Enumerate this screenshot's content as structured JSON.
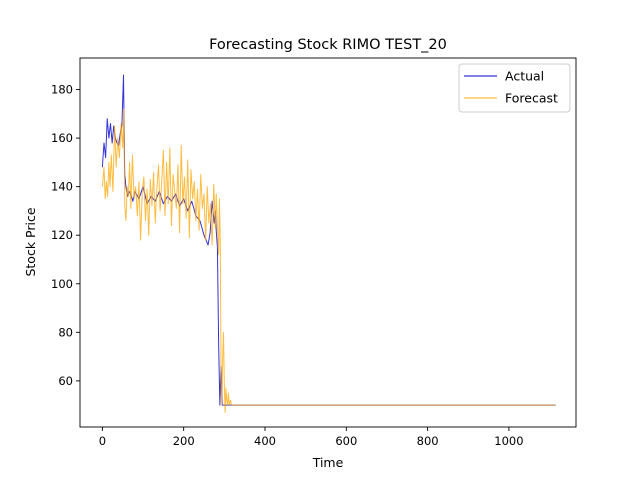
{
  "chart_data": {
    "type": "line",
    "title": "Forecasting Stock RIMO TEST_20",
    "xlabel": "Time",
    "ylabel": "Stock Price",
    "xlim": [
      -55,
      1165
    ],
    "ylim": [
      41,
      193
    ],
    "xticks": [
      0,
      200,
      400,
      600,
      800,
      1000
    ],
    "yticks": [
      60,
      80,
      100,
      120,
      140,
      160,
      180
    ],
    "grid": false,
    "legend_position": "top-right",
    "series": [
      {
        "name": "Actual",
        "color": "#0000cc",
        "x": [
          0,
          4,
          8,
          12,
          16,
          20,
          24,
          28,
          32,
          36,
          40,
          44,
          48,
          52,
          53,
          55,
          58,
          62,
          66,
          70,
          75,
          80,
          90,
          100,
          110,
          120,
          130,
          140,
          150,
          160,
          170,
          180,
          190,
          200,
          210,
          220,
          230,
          240,
          250,
          255,
          260,
          265,
          270,
          275,
          278,
          280,
          283,
          286,
          289,
          292,
          295,
          300,
          310,
          1115
        ],
        "y": [
          148,
          158,
          152,
          168,
          160,
          166,
          158,
          165,
          160,
          158,
          157,
          162,
          165,
          186,
          172,
          145,
          140,
          136,
          138,
          137,
          134,
          138,
          135,
          140,
          133,
          136,
          134,
          138,
          133,
          136,
          134,
          137,
          132,
          135,
          130,
          134,
          128,
          126,
          120,
          118,
          116,
          121,
          134,
          125,
          130,
          122,
          115,
          75,
          50,
          66,
          50,
          50,
          50,
          50
        ]
      },
      {
        "name": "Forecast",
        "color": "#ffa500",
        "x": [
          0,
          4,
          7,
          10,
          13,
          16,
          19,
          22,
          26,
          30,
          34,
          38,
          42,
          46,
          50,
          53,
          55,
          58,
          61,
          64,
          67,
          70,
          74,
          78,
          82,
          86,
          90,
          94,
          98,
          102,
          106,
          110,
          114,
          118,
          122,
          126,
          130,
          134,
          138,
          142,
          146,
          150,
          154,
          158,
          162,
          166,
          170,
          174,
          178,
          182,
          186,
          190,
          194,
          198,
          202,
          206,
          210,
          214,
          218,
          222,
          226,
          230,
          234,
          238,
          242,
          246,
          250,
          254,
          258,
          262,
          266,
          270,
          274,
          278,
          280,
          282,
          284,
          286,
          288,
          290,
          292,
          294,
          296,
          298,
          300,
          302,
          304,
          306,
          308,
          310,
          312,
          315,
          318,
          322,
          330,
          1115
        ],
        "y": [
          140,
          148,
          135,
          142,
          136,
          150,
          140,
          153,
          138,
          165,
          148,
          160,
          152,
          166,
          156,
          172,
          132,
          126,
          140,
          136,
          150,
          131,
          153,
          135,
          140,
          128,
          142,
          118,
          137,
          144,
          126,
          139,
          120,
          143,
          132,
          146,
          125,
          139,
          149,
          130,
          142,
          155,
          128,
          150,
          133,
          156,
          124,
          145,
          138,
          131,
          149,
          121,
          157,
          133,
          144,
          127,
          151,
          119,
          147,
          135,
          142,
          126,
          139,
          122,
          145,
          131,
          137,
          118,
          140,
          125,
          133,
          116,
          141,
          123,
          137,
          128,
          120,
          112,
          135,
          118,
          60,
          50,
          70,
          80,
          58,
          47,
          57,
          52,
          50,
          55,
          50,
          52,
          50,
          50,
          50,
          50
        ]
      }
    ]
  }
}
